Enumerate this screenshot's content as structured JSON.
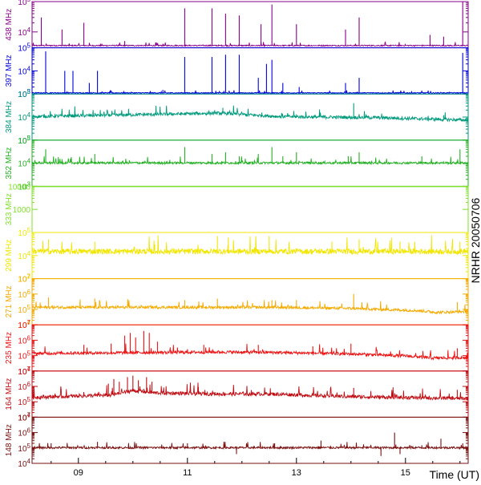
{
  "chart_data": {
    "type": "line",
    "title": "",
    "side_label": "NRHR 20050706",
    "xlabel": "Time (UT)",
    "xlim": [
      8.15,
      16.15
    ],
    "x_ticks": [
      "09",
      "11",
      "13",
      "15"
    ],
    "x_tick_values": [
      9,
      11,
      13,
      15
    ],
    "panels": [
      {
        "name": "438 MHz",
        "color": "#8a008a",
        "scale": "log",
        "ylim": [
          3000,
          100000
        ],
        "ytick_labels": [
          "10^5",
          "10^4",
          "10^3"
        ],
        "ytick_values": [
          100000,
          10000,
          1000
        ],
        "baseline": 3500,
        "noise": 0.02,
        "bursts": [
          [
            8.32,
            30000
          ],
          [
            8.7,
            12000
          ],
          [
            9.1,
            20000
          ],
          [
            9.85,
            5000
          ],
          [
            10.95,
            60000
          ],
          [
            11.45,
            60000
          ],
          [
            11.7,
            40000
          ],
          [
            11.95,
            35000
          ],
          [
            12.35,
            18000
          ],
          [
            12.55,
            80000
          ],
          [
            13.0,
            18000
          ],
          [
            13.9,
            12000
          ],
          [
            14.15,
            30000
          ],
          [
            15.45,
            8000
          ],
          [
            15.7,
            7000
          ],
          [
            16.05,
            100000
          ]
        ]
      },
      {
        "name": "397 MHz",
        "color": "#0000dd",
        "scale": "log",
        "ylim": [
          1000,
          100000
        ],
        "ytick_labels": [
          "10^5",
          "10^4",
          "10^3"
        ],
        "ytick_values": [
          100000,
          10000,
          1000
        ],
        "baseline": 1100,
        "noise": 0.02,
        "bursts": [
          [
            8.4,
            70000
          ],
          [
            8.75,
            10000
          ],
          [
            8.9,
            10000
          ],
          [
            9.2,
            3000
          ],
          [
            9.35,
            10000
          ],
          [
            10.55,
            1500
          ],
          [
            10.95,
            40000
          ],
          [
            11.45,
            40000
          ],
          [
            11.7,
            50000
          ],
          [
            11.95,
            50000
          ],
          [
            12.3,
            5000
          ],
          [
            12.45,
            20000
          ],
          [
            12.55,
            30000
          ],
          [
            12.75,
            3000
          ],
          [
            13.05,
            2000
          ],
          [
            13.9,
            3000
          ],
          [
            14.15,
            5000
          ],
          [
            16.05,
            60000
          ]
        ]
      },
      {
        "name": "384 MHz",
        "color": "#009a7c",
        "scale": "log",
        "ylim": [
          1000,
          100000
        ],
        "ytick_labels": [
          "10^5",
          "10^4",
          "10^3"
        ],
        "ytick_values": [
          100000,
          10000,
          1000
        ],
        "baseline": 10000,
        "noise": 0.07,
        "drift": [
          [
            8.15,
            10000
          ],
          [
            11.6,
            14000
          ],
          [
            12.7,
            10000
          ],
          [
            14.5,
            9000
          ],
          [
            16.15,
            7000
          ]
        ],
        "bursts": [
          [
            11.5,
            20000
          ],
          [
            11.65,
            25000
          ],
          [
            13.0,
            13000
          ],
          [
            14.05,
            40000
          ],
          [
            15.7,
            12000
          ]
        ]
      },
      {
        "name": "352 MHz",
        "color": "#22b022",
        "scale": "log",
        "ylim": [
          1000,
          100000
        ],
        "ytick_labels": [
          "10^5",
          "10^4",
          "10^3"
        ],
        "ytick_values": [
          100000,
          10000,
          1000
        ],
        "baseline": 10000,
        "noise": 0.05,
        "bursts": [
          [
            8.4,
            40000
          ],
          [
            8.7,
            15000
          ],
          [
            9.3,
            25000
          ],
          [
            10.95,
            50000
          ],
          [
            11.45,
            25000
          ],
          [
            11.7,
            30000
          ],
          [
            11.95,
            20000
          ],
          [
            12.3,
            25000
          ],
          [
            12.55,
            50000
          ],
          [
            12.75,
            20000
          ],
          [
            13.0,
            30000
          ],
          [
            13.95,
            20000
          ],
          [
            14.15,
            30000
          ],
          [
            15.3,
            20000
          ],
          [
            16.0,
            40000
          ]
        ]
      },
      {
        "name": "333 MHz",
        "color": "#7fe12a",
        "scale": "log",
        "ylim": [
          100,
          10000
        ],
        "ytick_labels": [
          "10000",
          "1000"
        ],
        "ytick_values": [
          10000,
          1000
        ],
        "baseline": 10000,
        "noise": 0,
        "bursts": []
      },
      {
        "name": "299 MHz",
        "color": "#f2e600",
        "scale": "log",
        "ylim": [
          1000,
          100000
        ],
        "ytick_labels": [
          "10^5",
          "10^4",
          "10^3"
        ],
        "ytick_values": [
          100000,
          10000,
          1000
        ],
        "baseline": 14000,
        "noise": 0.12,
        "bursts": [
          [
            8.45,
            50000
          ],
          [
            9.3,
            40000
          ],
          [
            10.4,
            30000
          ],
          [
            11.55,
            70000
          ],
          [
            11.75,
            60000
          ],
          [
            12.5,
            70000
          ],
          [
            13.65,
            40000
          ],
          [
            14.15,
            50000
          ],
          [
            14.9,
            40000
          ],
          [
            16.0,
            40000
          ]
        ]
      },
      {
        "name": "271 MHz",
        "color": "#f5aa00",
        "scale": "log",
        "ylim": [
          10000,
          10000000
        ],
        "ytick_labels": [
          "10^7",
          "10^6",
          "10^5",
          "10^4"
        ],
        "ytick_values": [
          10000000,
          1000000,
          100000,
          10000
        ],
        "baseline": 130000,
        "noise": 0.09,
        "drift": [
          [
            8.15,
            130000
          ],
          [
            12.6,
            130000
          ],
          [
            14.0,
            110000
          ],
          [
            15.2,
            80000
          ],
          [
            15.6,
            60000
          ],
          [
            16.15,
            70000
          ]
        ],
        "bursts": [
          [
            8.45,
            600000
          ],
          [
            9.3,
            500000
          ],
          [
            10.95,
            400000
          ],
          [
            11.55,
            500000
          ],
          [
            12.55,
            400000
          ],
          [
            13.0,
            400000
          ],
          [
            14.05,
            1000000
          ],
          [
            15.95,
            300000
          ]
        ]
      },
      {
        "name": "235 MHz",
        "color": "#ee1111",
        "scale": "log",
        "ylim": [
          10000,
          10000000
        ],
        "ytick_labels": [
          "10^7",
          "10^6",
          "10^5",
          "10^4"
        ],
        "ytick_values": [
          10000000,
          1000000,
          100000,
          10000
        ],
        "baseline": 130000,
        "noise": 0.1,
        "drift": [
          [
            8.15,
            130000
          ],
          [
            11.6,
            160000
          ],
          [
            12.6,
            150000
          ],
          [
            14.0,
            120000
          ],
          [
            15.0,
            90000
          ],
          [
            15.5,
            65000
          ],
          [
            16.15,
            70000
          ]
        ],
        "bursts": [
          [
            9.1,
            500000
          ],
          [
            9.6,
            600000
          ],
          [
            9.85,
            2000000
          ],
          [
            9.95,
            3000000
          ],
          [
            10.05,
            1500000
          ],
          [
            10.2,
            4000000
          ],
          [
            10.3,
            3000000
          ],
          [
            10.45,
            800000
          ],
          [
            11.3,
            500000
          ],
          [
            12.3,
            500000
          ],
          [
            13.3,
            400000
          ],
          [
            14.0,
            600000
          ],
          [
            15.95,
            300000
          ]
        ]
      },
      {
        "name": "164 MHz",
        "color": "#c00e14",
        "scale": "log",
        "ylim": [
          10000,
          10000000
        ],
        "ytick_labels": [
          "10^7",
          "10^6",
          "10^5",
          "10^4"
        ],
        "ytick_values": [
          10000000,
          1000000,
          100000,
          10000
        ],
        "baseline": 200000,
        "noise": 0.12,
        "drift": [
          [
            8.15,
            180000
          ],
          [
            9.6,
            250000
          ],
          [
            10.0,
            500000
          ],
          [
            10.4,
            350000
          ],
          [
            11.5,
            300000
          ],
          [
            12.5,
            300000
          ],
          [
            14.0,
            200000
          ],
          [
            16.15,
            150000
          ]
        ],
        "bursts": [
          [
            9.55,
            1500000
          ],
          [
            9.65,
            3000000
          ],
          [
            9.75,
            2000000
          ],
          [
            9.9,
            4000000
          ],
          [
            10.0,
            5000000
          ],
          [
            10.1,
            2500000
          ],
          [
            10.25,
            4000000
          ],
          [
            10.35,
            2000000
          ],
          [
            11.2,
            900000
          ],
          [
            14.05,
            800000
          ],
          [
            15.95,
            600000
          ]
        ]
      },
      {
        "name": "148 MHz",
        "color": "#7a0f0f",
        "scale": "log",
        "ylim": [
          10000,
          10000000
        ],
        "ytick_labels": [
          "10^7",
          "10^6",
          "10^5",
          "10^4"
        ],
        "ytick_values": [
          10000000,
          1000000,
          100000,
          10000
        ],
        "baseline": 100000,
        "noise": 0.07,
        "bursts": [
          [
            8.5,
            200000
          ],
          [
            9.35,
            250000
          ],
          [
            11.0,
            200000
          ],
          [
            11.9,
            40000
          ],
          [
            12.6,
            200000
          ],
          [
            13.45,
            300000
          ],
          [
            14.55,
            30000
          ],
          [
            14.8,
            1000000
          ],
          [
            14.9,
            40000
          ],
          [
            15.3,
            150000
          ],
          [
            15.65,
            400000
          ],
          [
            16.05,
            200000
          ]
        ]
      }
    ]
  }
}
